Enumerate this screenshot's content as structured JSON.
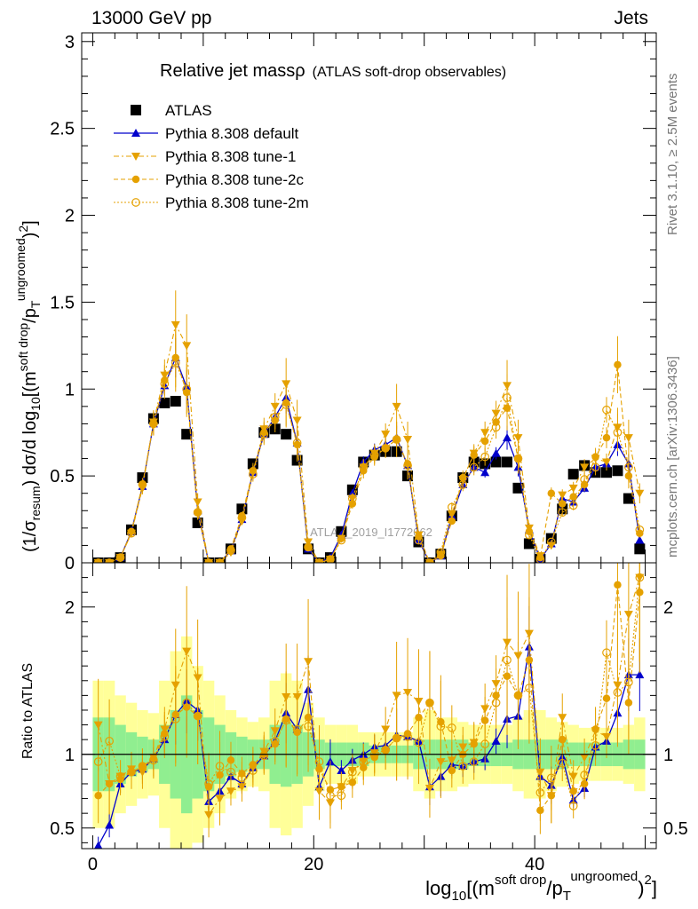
{
  "header": {
    "left": "13000 GeV pp",
    "right": "Jets",
    "side_top": "Rivet 3.1.10, ≥ 2.5M events",
    "side_bottom": "mcplots.cern.ch [arXiv:1306.3436]"
  },
  "chart_data": [
    {
      "type": "scatter",
      "panel": "main",
      "title": "Relative jet massρ",
      "title_note": "(ATLAS soft-drop observables)",
      "watermark": "ATLAS_2019_I1772062",
      "ylabel": "(1/σresum) dσ/d log10[(msoft drop/pTungroomed)2]",
      "xlabel": "log10[(msoft drop/pTungroomed)2]",
      "xlim": [
        -1,
        51
      ],
      "ylim": [
        0,
        3.05
      ],
      "x_ticks": [
        "0",
        "20",
        "40"
      ],
      "y_ticks": [
        "0",
        "0.5",
        "1",
        "1.5",
        "2",
        "2.5",
        "3"
      ],
      "legend_position": "top-left",
      "x": [
        0.5,
        1.5,
        2.5,
        3.5,
        4.5,
        5.5,
        6.5,
        7.5,
        8.5,
        9.5,
        10.5,
        11.5,
        12.5,
        13.5,
        14.5,
        15.5,
        16.5,
        17.5,
        18.5,
        19.5,
        20.5,
        21.5,
        22.5,
        23.5,
        24.5,
        25.5,
        26.5,
        27.5,
        28.5,
        29.5,
        30.5,
        31.5,
        32.5,
        33.5,
        34.5,
        35.5,
        36.5,
        37.5,
        38.5,
        39.5,
        40.5,
        41.5,
        42.5,
        43.5,
        44.5,
        45.5,
        46.5,
        47.5,
        48.5,
        49.5
      ],
      "series": [
        {
          "name": "ATLAS",
          "color": "#000000",
          "marker": "square",
          "values": [
            0,
            0,
            0.03,
            0.19,
            0.49,
            0.83,
            0.92,
            0.93,
            0.74,
            0.23,
            0,
            0,
            0.08,
            0.31,
            0.57,
            0.75,
            0.77,
            0.74,
            0.59,
            0.08,
            0,
            0.03,
            0.18,
            0.42,
            0.58,
            0.62,
            0.64,
            0.64,
            0.5,
            0.12,
            0,
            0.05,
            0.27,
            0.49,
            0.58,
            0.57,
            0.58,
            0.58,
            0.43,
            0.11,
            0.02,
            0.14,
            0.31,
            0.51,
            0.56,
            0.52,
            0.52,
            0.53,
            0.37,
            0.08
          ]
        },
        {
          "name": "Pythia 8.308 default",
          "color": "#0000cc",
          "marker": "triangle",
          "values": [
            0,
            0,
            0.03,
            0.18,
            0.44,
            0.8,
            1.02,
            1.18,
            1.01,
            0.3,
            0,
            0,
            0.07,
            0.25,
            0.52,
            0.74,
            0.84,
            0.95,
            0.69,
            0.08,
            0,
            0.03,
            0.16,
            0.4,
            0.58,
            0.65,
            0.68,
            0.72,
            0.56,
            0.13,
            0,
            0.04,
            0.27,
            0.45,
            0.55,
            0.52,
            0.63,
            0.72,
            0.55,
            0.19,
            0.02,
            0.11,
            0.37,
            0.35,
            0.43,
            0.55,
            0.57,
            0.68,
            0.57,
            0.13
          ]
        },
        {
          "name": "Pythia 8.308 tune-1",
          "color": "#e5a100",
          "marker": "triangle-down",
          "values": [
            0,
            0,
            0.03,
            0.17,
            0.43,
            0.81,
            1.08,
            1.37,
            1.25,
            0.35,
            0,
            0,
            0.06,
            0.24,
            0.52,
            0.77,
            0.9,
            1.03,
            0.82,
            0.12,
            0,
            0.02,
            0.14,
            0.37,
            0.55,
            0.63,
            0.74,
            0.9,
            0.71,
            0.16,
            0,
            0.05,
            0.28,
            0.48,
            0.63,
            0.75,
            0.86,
            1.02,
            0.72,
            0.2,
            0.04,
            0.1,
            0.39,
            0.43,
            0.55,
            0.6,
            0.58,
            0.78,
            0.72,
            0.4
          ]
        },
        {
          "name": "Pythia 8.308 tune-2c",
          "color": "#e5a100",
          "marker": "circle",
          "values": [
            0,
            0,
            0.03,
            0.18,
            0.45,
            0.8,
            1.05,
            1.18,
            0.98,
            0.29,
            0,
            0,
            0.08,
            0.27,
            0.53,
            0.75,
            0.82,
            0.92,
            0.68,
            0.09,
            0,
            0.02,
            0.14,
            0.34,
            0.53,
            0.61,
            0.66,
            0.71,
            0.57,
            0.15,
            0,
            0.04,
            0.24,
            0.49,
            0.62,
            0.7,
            0.81,
            0.89,
            0.6,
            0.18,
            0.03,
            0.4,
            0.34,
            0.38,
            0.45,
            0.61,
            0.72,
            1.14,
            0.5,
            0.17
          ]
        },
        {
          "name": "Pythia 8.308 tune-2m",
          "color": "#e5a100",
          "marker": "circle-open",
          "values": [
            0,
            0,
            0.03,
            0.17,
            0.45,
            0.8,
            1.03,
            1.15,
            1.0,
            0.29,
            0,
            0,
            0.07,
            0.26,
            0.51,
            0.74,
            0.84,
            0.91,
            0.69,
            0.09,
            0,
            0.02,
            0.13,
            0.37,
            0.55,
            0.62,
            0.66,
            0.71,
            0.56,
            0.13,
            0,
            0.06,
            0.32,
            0.45,
            0.55,
            0.61,
            0.78,
            0.95,
            0.6,
            0.16,
            0.02,
            0.12,
            0.29,
            0.33,
            0.48,
            0.55,
            0.88,
            0.75,
            0.55,
            0.19
          ]
        }
      ]
    },
    {
      "type": "scatter",
      "panel": "ratio",
      "ylabel": "Ratio to ATLAS",
      "xlim": [
        -1,
        51
      ],
      "ylim": [
        0.36,
        2.3
      ],
      "y_ticks": [
        "0.5",
        "1",
        "2"
      ],
      "reference": 1,
      "bands": [
        {
          "name": "inner",
          "color": "#90ee90",
          "half_width": [
            0.25,
            0.25,
            0.2,
            0.15,
            0.12,
            0.1,
            0.2,
            0.3,
            0.4,
            0.3,
            0.25,
            0.2,
            0.15,
            0.12,
            0.1,
            0.1,
            0.2,
            0.22,
            0.2,
            0.15,
            0.1,
            0.08,
            0.08,
            0.08,
            0.08,
            0.06,
            0.06,
            0.06,
            0.06,
            0.1,
            0.1,
            0.1,
            0.1,
            0.1,
            0.08,
            0.08,
            0.08,
            0.08,
            0.1,
            0.1,
            0.1,
            0.1,
            0.1,
            0.08,
            0.08,
            0.08,
            0.08,
            0.08,
            0.1,
            0.1
          ]
        },
        {
          "name": "outer",
          "color": "#ffff99",
          "half_width": [
            0.5,
            0.5,
            0.4,
            0.35,
            0.3,
            0.28,
            0.5,
            0.7,
            0.8,
            0.6,
            0.5,
            0.4,
            0.3,
            0.25,
            0.22,
            0.25,
            0.5,
            0.55,
            0.5,
            0.35,
            0.25,
            0.2,
            0.2,
            0.2,
            0.15,
            0.15,
            0.15,
            0.15,
            0.15,
            0.25,
            0.3,
            0.25,
            0.25,
            0.22,
            0.2,
            0.2,
            0.2,
            0.2,
            0.25,
            0.3,
            0.3,
            0.25,
            0.22,
            0.2,
            0.18,
            0.18,
            0.18,
            0.18,
            0.2,
            0.25
          ]
        }
      ],
      "series": [
        {
          "name": "Pythia 8.308 default",
          "values": [
            0.38,
            0.52,
            0.8,
            0.88,
            0.9,
            0.97,
            1.1,
            1.27,
            1.36,
            1.3,
            0.68,
            0.75,
            0.85,
            0.8,
            0.91,
            0.99,
            1.09,
            1.28,
            1.17,
            1.44,
            0.78,
            0.95,
            0.89,
            0.96,
            1.0,
            1.05,
            1.06,
            1.13,
            1.12,
            1.09,
            0.78,
            0.85,
            0.93,
            0.92,
            0.95,
            0.97,
            1.09,
            1.24,
            1.26,
            1.73,
            0.85,
            0.79,
            0.98,
            0.69,
            0.77,
            1.05,
            1.09,
            1.28,
            1.54,
            1.54
          ]
        },
        {
          "name": "Pythia 8.308 tune-1",
          "values": [
            1.2,
            0.8,
            0.85,
            0.9,
            0.88,
            0.98,
            1.17,
            1.47,
            1.7,
            1.52,
            0.59,
            0.7,
            0.75,
            0.78,
            0.91,
            1.02,
            1.16,
            1.39,
            1.39,
            1.63,
            0.75,
            0.67,
            0.78,
            0.89,
            0.95,
            1.01,
            1.17,
            1.4,
            1.42,
            1.36,
            0.77,
            0.95,
            0.96,
            1.05,
            1.08,
            1.31,
            1.48,
            1.76,
            1.67,
            1.82,
            0.88,
            0.72,
            1.25,
            0.85,
            0.98,
            1.16,
            1.12,
            1.47,
            1.95,
            2.2
          ]
        },
        {
          "name": "Pythia 8.308 tune-2c",
          "values": [
            0.72,
            0.8,
            0.83,
            0.88,
            0.92,
            0.97,
            1.14,
            1.27,
            1.32,
            1.26,
            0.78,
            0.86,
            0.96,
            0.87,
            0.93,
            1.0,
            1.07,
            1.24,
            1.15,
            1.25,
            0.9,
            0.76,
            0.78,
            0.81,
            0.91,
            0.98,
            1.03,
            1.11,
            1.14,
            1.25,
            1.35,
            1.22,
            0.89,
            1.0,
            1.07,
            1.23,
            1.4,
            1.53,
            1.4,
            1.64,
            0.62,
            0.72,
            1.1,
            0.75,
            0.8,
            1.17,
            1.38,
            2.15,
            1.35,
            2.1
          ]
        },
        {
          "name": "Pythia 8.308 tune-2m",
          "values": [
            0.95,
            1.09,
            0.85,
            0.88,
            0.92,
            0.96,
            1.12,
            1.24,
            1.35,
            1.26,
            0.8,
            0.92,
            0.88,
            0.84,
            0.89,
            0.99,
            1.09,
            1.23,
            1.17,
            1.19,
            0.95,
            0.72,
            0.72,
            0.88,
            0.95,
            1.0,
            1.03,
            1.11,
            1.12,
            1.08,
            1.35,
            1.19,
            1.18,
            0.92,
            0.95,
            1.07,
            1.35,
            1.64,
            1.4,
            1.45,
            0.74,
            0.84,
            0.94,
            0.65,
            0.86,
            1.06,
            1.69,
            1.42,
            1.49,
            2.2
          ]
        }
      ]
    }
  ]
}
